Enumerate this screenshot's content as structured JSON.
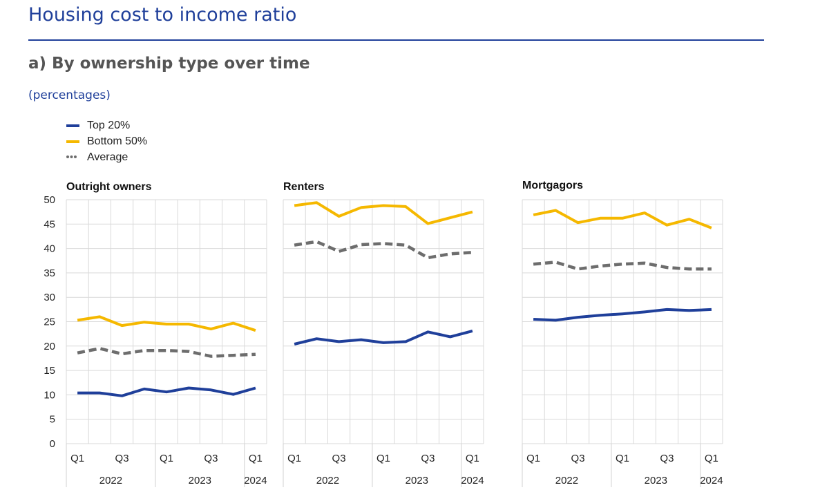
{
  "header": {
    "title": "Housing cost to income ratio",
    "subtitle": "a) By ownership type over time",
    "units": "(percentages)"
  },
  "legend": [
    {
      "name": "Top 20%",
      "color": "#1f3f9a",
      "style": "solid"
    },
    {
      "name": "Bottom 50%",
      "color": "#f5b800",
      "style": "solid"
    },
    {
      "name": "Average",
      "color": "#6d6d6d",
      "style": "dashed"
    }
  ],
  "chart_data": {
    "type": "line",
    "ylim": [
      0,
      50
    ],
    "yticks": [
      "0",
      "5",
      "10",
      "15",
      "20",
      "25",
      "30",
      "35",
      "40",
      "45",
      "50"
    ],
    "x_tick_labels": [
      "Q1",
      "",
      "Q3",
      "",
      "Q1",
      "",
      "Q3",
      "",
      "Q1"
    ],
    "x_year_labels": [
      {
        "label": "2022",
        "index": 1.5
      },
      {
        "label": "2023",
        "index": 5.5
      },
      {
        "label": "2024",
        "index": 8
      }
    ],
    "grid": true,
    "panels": [
      {
        "title": "Outright owners",
        "series": [
          {
            "name": "Top 20%",
            "values": [
              10.4,
              10.4,
              9.8,
              11.2,
              10.6,
              11.4,
              11.0,
              10.1,
              11.4
            ]
          },
          {
            "name": "Bottom 50%",
            "values": [
              25.3,
              26.0,
              24.2,
              24.9,
              24.5,
              24.5,
              23.5,
              24.7,
              23.2
            ]
          },
          {
            "name": "Average",
            "values": [
              18.6,
              19.5,
              18.4,
              19.1,
              19.1,
              18.9,
              17.9,
              18.1,
              18.3
            ]
          }
        ]
      },
      {
        "title": "Renters",
        "series": [
          {
            "name": "Top 20%",
            "values": [
              20.4,
              21.5,
              20.9,
              21.3,
              20.7,
              20.9,
              22.9,
              21.9,
              23.1
            ]
          },
          {
            "name": "Bottom 50%",
            "values": [
              48.8,
              49.4,
              46.6,
              48.4,
              48.8,
              48.6,
              45.1,
              46.3,
              47.5
            ]
          },
          {
            "name": "Average",
            "values": [
              40.7,
              41.4,
              39.4,
              40.8,
              41.0,
              40.7,
              38.1,
              38.9,
              39.2
            ]
          }
        ]
      },
      {
        "title": "Mortgagors",
        "series": [
          {
            "name": "Top 20%",
            "values": [
              25.5,
              25.3,
              25.9,
              26.3,
              26.6,
              27.0,
              27.5,
              27.3,
              27.5
            ]
          },
          {
            "name": "Bottom 50%",
            "values": [
              46.9,
              47.8,
              45.3,
              46.2,
              46.2,
              47.3,
              44.8,
              46.0,
              44.2
            ]
          },
          {
            "name": "Average",
            "values": [
              36.8,
              37.2,
              35.8,
              36.4,
              36.8,
              37.0,
              36.1,
              35.8,
              35.8
            ]
          }
        ]
      }
    ]
  }
}
